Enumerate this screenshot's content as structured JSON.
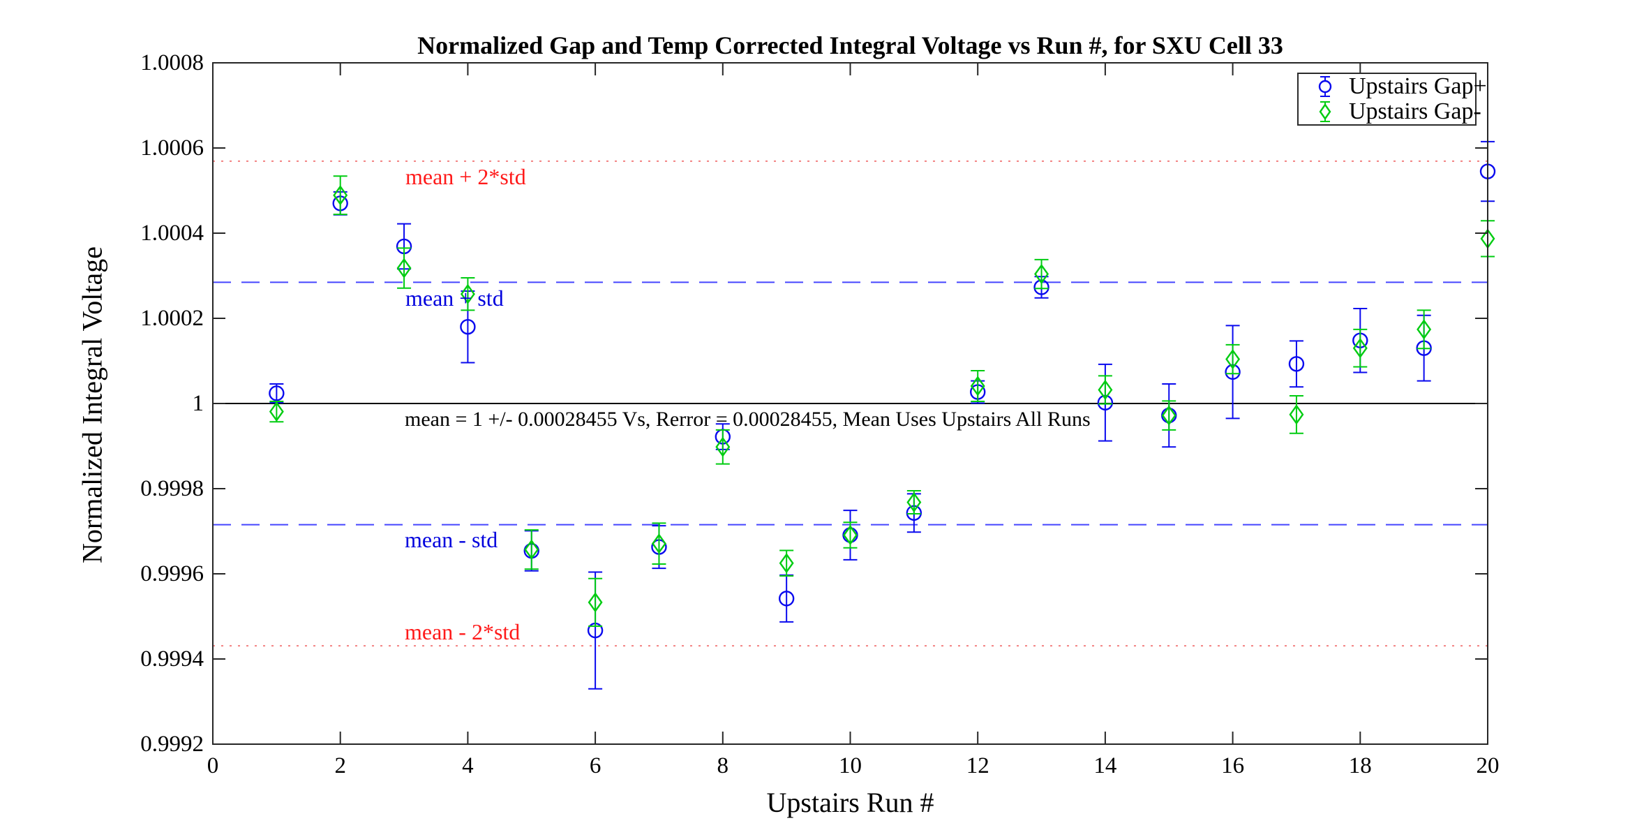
{
  "figure": {
    "background": "#ffffff"
  },
  "title": "Normalized Gap and Temp Corrected Integral Voltage vs Run #, for SXU Cell 33",
  "axes": {
    "xlabel": "Upstairs Run #",
    "ylabel": "Normalized Integral Voltage",
    "xlim": [
      0,
      20
    ],
    "ylim": [
      0.9992,
      1.0008
    ],
    "x_ticks": [
      {
        "v": 0,
        "label": "0"
      },
      {
        "v": 2,
        "label": "2"
      },
      {
        "v": 4,
        "label": "4"
      },
      {
        "v": 6,
        "label": "6"
      },
      {
        "v": 8,
        "label": "8"
      },
      {
        "v": 10,
        "label": "10"
      },
      {
        "v": 12,
        "label": "12"
      },
      {
        "v": 14,
        "label": "14"
      },
      {
        "v": 16,
        "label": "16"
      },
      {
        "v": 18,
        "label": "18"
      },
      {
        "v": 20,
        "label": "20"
      }
    ],
    "y_ticks": [
      {
        "v": 1.0008,
        "label": "1.0008"
      },
      {
        "v": 1.0006,
        "label": "1.0006"
      },
      {
        "v": 1.0004,
        "label": "1.0004"
      },
      {
        "v": 1.0002,
        "label": "1.0002"
      },
      {
        "v": 1.0,
        "label": "1"
      },
      {
        "v": 0.9998,
        "label": "0.9998"
      },
      {
        "v": 0.9996,
        "label": "0.9996"
      },
      {
        "v": 0.9994,
        "label": "0.9994"
      },
      {
        "v": 0.9992,
        "label": "0.9992"
      }
    ],
    "box_color": "#262626",
    "grid": false
  },
  "chart_data": {
    "type": "scatter",
    "subtype": "errorbar",
    "title": "Normalized Gap and Temp Corrected Integral Voltage vs Run #, for SXU Cell 33",
    "xlabel": "Upstairs Run #",
    "ylabel": "Normalized Integral Voltage",
    "xlim": [
      0,
      20
    ],
    "ylim": [
      0.9992,
      1.0008
    ],
    "x": [
      1,
      2,
      3,
      4,
      5,
      6,
      7,
      8,
      9,
      10,
      11,
      12,
      13,
      14,
      15,
      16,
      17,
      18,
      19,
      20
    ],
    "series": [
      {
        "name": "Upstairs Gap+",
        "marker": "circle",
        "color": "#0a0aee",
        "values": [
          1.000024,
          1.00047,
          1.000369,
          1.00018,
          0.999654,
          0.999467,
          0.999663,
          0.999922,
          0.999542,
          0.999691,
          0.999743,
          1.000027,
          1.000273,
          1.000002,
          0.999972,
          1.000074,
          1.000093,
          1.000148,
          1.00013,
          1.000545
        ],
        "errors": [
          2.2e-05,
          2.7e-05,
          5.3e-05,
          8.4e-05,
          4.7e-05,
          0.000137,
          5e-05,
          3e-05,
          5.5e-05,
          5.8e-05,
          4.5e-05,
          2.6e-05,
          2.5e-05,
          9e-05,
          7.4e-05,
          0.000109,
          5.4e-05,
          7.5e-05,
          7.7e-05,
          7e-05
        ]
      },
      {
        "name": "Upstairs Gap-",
        "marker": "diamond",
        "color": "#00cc11",
        "values": [
          0.999981,
          1.000489,
          1.000318,
          1.000257,
          0.999657,
          0.999533,
          0.999671,
          0.999898,
          0.999625,
          0.999691,
          0.999768,
          1.000041,
          1.000304,
          1.000032,
          0.999972,
          1.000104,
          0.999974,
          1.00013,
          1.000174,
          1.000387
        ],
        "errors": [
          2.4e-05,
          4.5e-05,
          4.7e-05,
          3.8e-05,
          4.6e-05,
          5.6e-05,
          4.8e-05,
          4e-05,
          3e-05,
          3e-05,
          2.7e-05,
          3.6e-05,
          3.4e-05,
          3.3e-05,
          3.4e-05,
          3.4e-05,
          4.4e-05,
          4.4e-05,
          4.5e-05,
          4.2e-05
        ]
      }
    ],
    "reference_lines": [
      {
        "label": "mean + 2*std",
        "value": 1.0005691,
        "color": "#f28080",
        "style": "dotted",
        "label_color": "#ff1a1a"
      },
      {
        "label": "mean + std",
        "value": 1.00028455,
        "color": "#4545ff",
        "style": "dashed",
        "label_color": "#0000dd"
      },
      {
        "label": "mean",
        "value": 1.0,
        "color": "#000000",
        "style": "solid",
        "label_color": "#000000"
      },
      {
        "label": "mean - std",
        "value": 0.99971545,
        "color": "#4545ff",
        "style": "dashed",
        "label_color": "#0000dd"
      },
      {
        "label": "mean - 2*std",
        "value": 0.9994309,
        "color": "#f28080",
        "style": "dotted",
        "label_color": "#ff1a1a"
      }
    ],
    "annotation": "mean = 1 +/- 0.00028455 Vs, Rerror = 0.00028455, Mean Uses Upstairs All Runs",
    "legend_position": "top-right"
  },
  "legend": {
    "items": [
      {
        "label": "Upstairs Gap+",
        "marker": "circle",
        "color": "#0a0aee"
      },
      {
        "label": "Upstairs Gap-",
        "marker": "diamond",
        "color": "#00cc11"
      }
    ]
  }
}
